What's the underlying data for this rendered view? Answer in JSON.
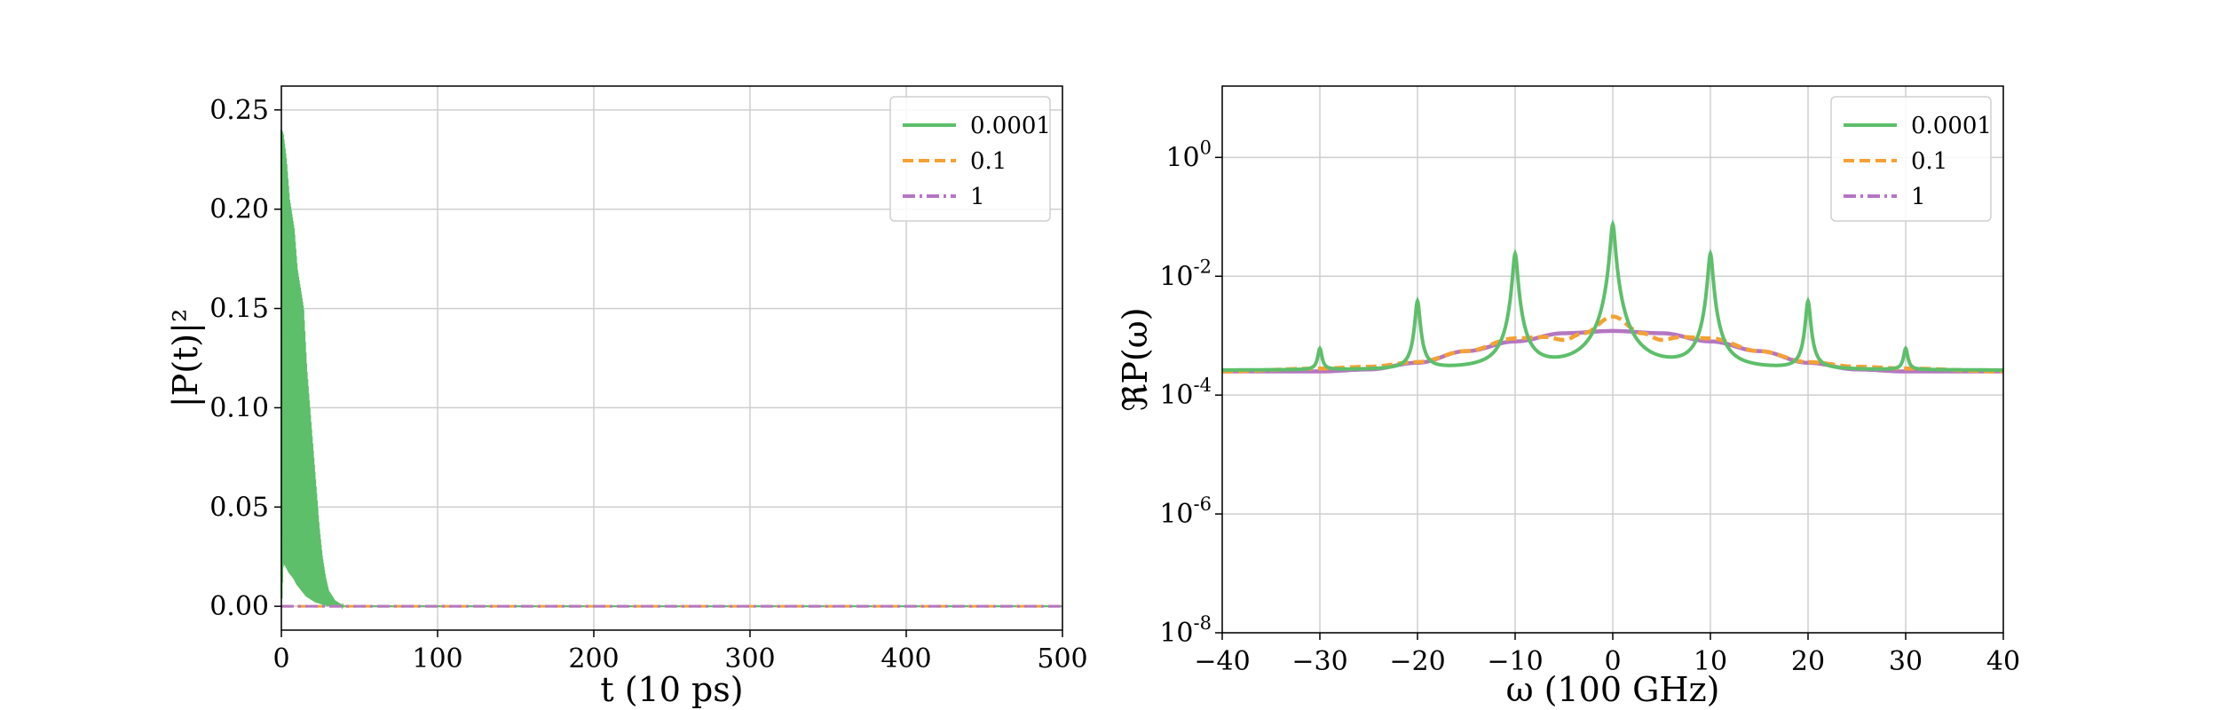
{
  "colors": {
    "series_0.0001": "#5dbf6a",
    "series_0.1": "#f5a133",
    "series_1": "#b476c2",
    "grid": "#cfcfcf"
  },
  "chart_data": [
    {
      "type": "line",
      "xlabel": "t (10 ps)",
      "ylabel": "|P(t)|²",
      "xlim": [
        0,
        500
      ],
      "ylim": [
        -0.012,
        0.262
      ],
      "yscale": "linear",
      "grid": true,
      "legend_placement": "top-right",
      "x_ticks": [
        "0",
        "100",
        "200",
        "300",
        "400",
        "500"
      ],
      "y_ticks": [
        "0.00",
        "0.05",
        "0.10",
        "0.15",
        "0.20",
        "0.25"
      ],
      "series": [
        {
          "name": "0.0001",
          "style": "solid",
          "description_envelope": true,
          "x": [
            0,
            1,
            3,
            5,
            8,
            10,
            12,
            14,
            16,
            18,
            20,
            22,
            24,
            26,
            28,
            30,
            34,
            40,
            60,
            500
          ],
          "upper": [
            0.24,
            0.238,
            0.225,
            0.205,
            0.19,
            0.17,
            0.16,
            0.15,
            0.12,
            0.1,
            0.08,
            0.06,
            0.04,
            0.025,
            0.015,
            0.008,
            0.003,
            0.0,
            0.0,
            0.0
          ],
          "lower": [
            0.0,
            0.022,
            0.02,
            0.017,
            0.014,
            0.011,
            0.009,
            0.007,
            0.005,
            0.004,
            0.003,
            0.002,
            0.0015,
            0.001,
            0.0005,
            0.0,
            0.0,
            0.0,
            0.0,
            0.0
          ]
        },
        {
          "name": "0.1",
          "style": "dashed",
          "x": [
            0,
            500
          ],
          "y": [
            0.0,
            0.0
          ]
        },
        {
          "name": "1",
          "style": "dashdot",
          "x": [
            0,
            500
          ],
          "y": [
            0.0,
            0.0
          ]
        }
      ]
    },
    {
      "type": "line",
      "xlabel": "ω (100 GHz)",
      "ylabel": "ℜP(ω)",
      "xlim": [
        -40,
        40
      ],
      "ylim_log10": [
        -8,
        1.2
      ],
      "yscale": "log",
      "grid": true,
      "legend_placement": "top-right",
      "x_ticks": [
        "−40",
        "−30",
        "−20",
        "−10",
        "0",
        "10",
        "20",
        "30",
        "40"
      ],
      "y_ticks": [
        {
          "base": "10",
          "exp": "0"
        },
        {
          "base": "10",
          "exp": "-2"
        },
        {
          "base": "10",
          "exp": "-4"
        },
        {
          "base": "10",
          "exp": "-6"
        },
        {
          "base": "10",
          "exp": "-8"
        }
      ],
      "series": [
        {
          "name": "0.0001",
          "style": "solid",
          "baseline": 0.00026,
          "peaks": [
            {
              "x": -30,
              "y": 0.0006
            },
            {
              "x": -20,
              "y": 0.0038
            },
            {
              "x": -10,
              "y": 0.024
            },
            {
              "x": 0,
              "y": 0.075
            },
            {
              "x": 10,
              "y": 0.024
            },
            {
              "x": 20,
              "y": 0.0038
            },
            {
              "x": 30,
              "y": 0.0006
            }
          ]
        },
        {
          "name": "0.1",
          "style": "dashed",
          "x": [
            -40,
            -30,
            -25,
            -20,
            -15,
            -10,
            -7,
            -5,
            -3,
            0,
            3,
            5,
            7,
            10,
            15,
            20,
            25,
            30,
            40
          ],
          "y": [
            0.00025,
            0.00028,
            0.0003,
            0.00036,
            0.00055,
            0.0009,
            0.00095,
            0.00085,
            0.0011,
            0.0021,
            0.0011,
            0.00085,
            0.00095,
            0.0009,
            0.00055,
            0.00036,
            0.0003,
            0.00028,
            0.00025
          ]
        },
        {
          "name": "1",
          "style": "dashdot",
          "x": [
            -40,
            -30,
            -25,
            -20,
            -15,
            -10,
            -5,
            0,
            5,
            10,
            15,
            20,
            25,
            30,
            40
          ],
          "y": [
            0.00025,
            0.00025,
            0.00027,
            0.00035,
            0.00055,
            0.0008,
            0.0011,
            0.0012,
            0.0011,
            0.0008,
            0.00055,
            0.00035,
            0.00027,
            0.00025,
            0.00025
          ]
        }
      ]
    }
  ]
}
